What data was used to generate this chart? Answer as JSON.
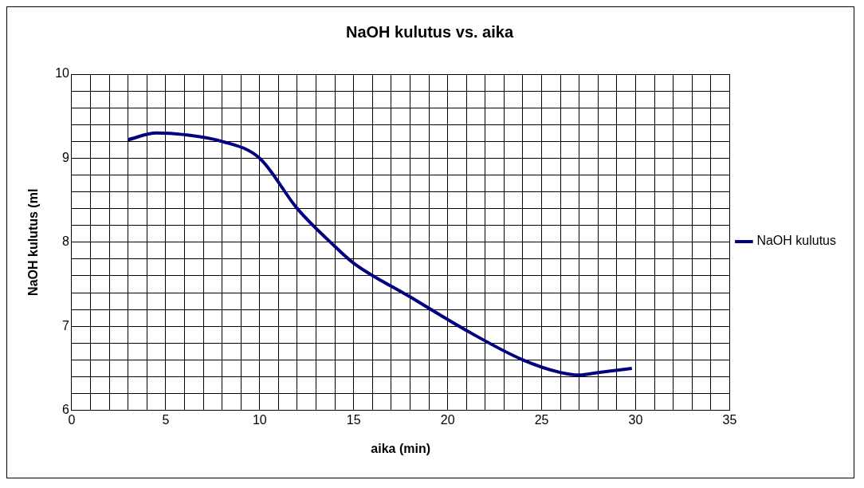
{
  "chart_data": {
    "type": "line",
    "title": "NaOH kulutus vs. aika",
    "xlabel": "aika (min)",
    "ylabel": "NaOH kulutus (ml",
    "x": [
      3,
      4.5,
      6,
      8,
      10,
      12,
      14,
      15,
      18,
      21,
      24,
      26,
      27,
      28,
      29.8
    ],
    "series": [
      {
        "name": "NaOH kulutus",
        "color": "#000080",
        "values": [
          9.22,
          9.3,
          9.28,
          9.2,
          9.0,
          8.4,
          7.95,
          7.75,
          7.35,
          6.95,
          6.6,
          6.45,
          6.42,
          6.45,
          6.5
        ]
      }
    ],
    "xlim": [
      0,
      35
    ],
    "ylim": [
      6,
      10
    ],
    "xticks": [
      0,
      {
        "value": 1,
        "label": null
      },
      {
        "value": 2,
        "label": null
      },
      {
        "value": 3,
        "label": null
      },
      {
        "value": 4,
        "label": null
      },
      5,
      {
        "value": 6,
        "label": null
      },
      {
        "value": 7,
        "label": null
      },
      {
        "value": 8,
        "label": null
      },
      {
        "value": 9,
        "label": null
      },
      10,
      {
        "value": 11,
        "label": null
      },
      {
        "value": 12,
        "label": null
      },
      {
        "value": 13,
        "label": null
      },
      {
        "value": 14,
        "label": null
      },
      15,
      {
        "value": 16,
        "label": null
      },
      {
        "value": 17,
        "label": null
      },
      {
        "value": 18,
        "label": null
      },
      {
        "value": 19,
        "label": null
      },
      20,
      {
        "value": 21,
        "label": null
      },
      {
        "value": 22,
        "label": null
      },
      {
        "value": 23,
        "label": null
      },
      {
        "value": 24,
        "label": null
      },
      25,
      {
        "value": 26,
        "label": null
      },
      {
        "value": 27,
        "label": null
      },
      {
        "value": 28,
        "label": null
      },
      {
        "value": 29,
        "label": null
      },
      30,
      {
        "value": 31,
        "label": null
      },
      {
        "value": 32,
        "label": null
      },
      {
        "value": 33,
        "label": null
      },
      {
        "value": 34,
        "label": null
      },
      35
    ],
    "yticks": [
      6,
      {
        "value": 6.2,
        "label": null
      },
      {
        "value": 6.4,
        "label": null
      },
      {
        "value": 6.6,
        "label": null
      },
      {
        "value": 6.8,
        "label": null
      },
      7,
      {
        "value": 7.2,
        "label": null
      },
      {
        "value": 7.4,
        "label": null
      },
      {
        "value": 7.6,
        "label": null
      },
      {
        "value": 7.8,
        "label": null
      },
      8,
      {
        "value": 8.2,
        "label": null
      },
      {
        "value": 8.4,
        "label": null
      },
      {
        "value": 8.6,
        "label": null
      },
      {
        "value": 8.8,
        "label": null
      },
      9,
      {
        "value": 9.2,
        "label": null
      },
      {
        "value": 9.4,
        "label": null
      },
      {
        "value": 9.6,
        "label": null
      },
      {
        "value": 9.8,
        "label": null
      },
      10
    ],
    "grid": true,
    "legend": "right",
    "marker": "none",
    "line_style": "solid"
  }
}
